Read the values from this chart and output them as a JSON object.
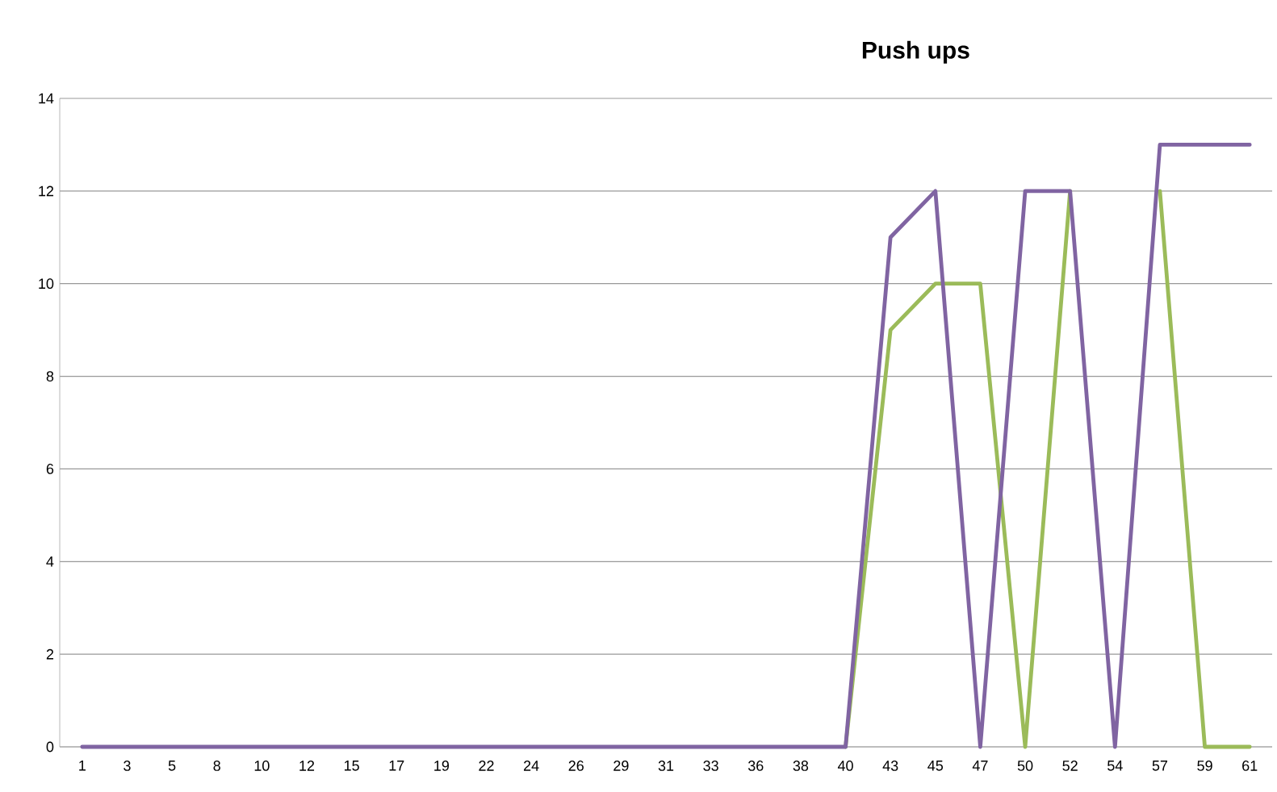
{
  "chart_data": {
    "type": "line",
    "title": "Push ups",
    "categories": [
      "1",
      "3",
      "5",
      "8",
      "10",
      "12",
      "15",
      "17",
      "19",
      "22",
      "24",
      "26",
      "29",
      "31",
      "33",
      "36",
      "38",
      "40",
      "43",
      "45",
      "47",
      "50",
      "52",
      "54",
      "57",
      "59",
      "61"
    ],
    "series": [
      {
        "color": "#9bbb59",
        "values": [
          null,
          null,
          null,
          null,
          null,
          null,
          null,
          null,
          null,
          null,
          null,
          null,
          null,
          null,
          null,
          null,
          null,
          0,
          9,
          10,
          10,
          0,
          12,
          null,
          12,
          0,
          0
        ]
      },
      {
        "color": "#8064a2",
        "values": [
          0,
          0,
          0,
          0,
          0,
          0,
          0,
          0,
          0,
          0,
          0,
          0,
          0,
          0,
          0,
          0,
          0,
          0,
          11,
          12,
          0,
          12,
          12,
          0,
          13,
          13,
          13
        ]
      }
    ],
    "ylim": [
      0,
      14
    ],
    "yticks": [
      0,
      2,
      4,
      6,
      8,
      10,
      12,
      14
    ],
    "grid": "y",
    "marker": "none",
    "line_style": "solid"
  }
}
